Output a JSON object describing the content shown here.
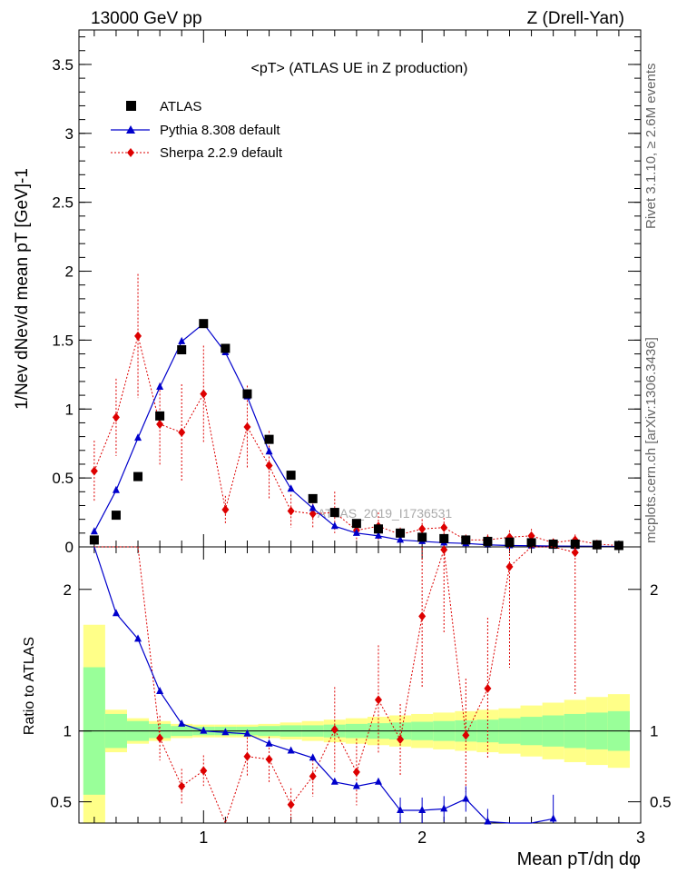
{
  "header": {
    "left": "13000 GeV pp",
    "right": "Z (Drell-Yan)"
  },
  "side_labels": {
    "rivet": "Rivet 3.1.10, ≥ 2.6M events",
    "mcplots": "mcplots.cern.ch [arXiv:1306.3436]"
  },
  "watermark": "ATLAS_2019_I1736531",
  "colors": {
    "atlas": "#000000",
    "pythia": "#0000cc",
    "sherpa": "#dd0000",
    "band_inner": "#99ff99",
    "band_outer": "#ffff88"
  },
  "chart_data": {
    "type": "scatter",
    "title": "<pT>  (ATLAS UE in Z production)",
    "xlabel": "Mean pT/dη dφ",
    "ylabel": "1/Nev dNev/d mean pT [GeV]-1",
    "ratio_ylabel": "Ratio to ATLAS",
    "xlim": [
      0.43,
      3.0
    ],
    "ylim": [
      0,
      3.75
    ],
    "ratio_ylim": [
      0.35,
      2.3
    ],
    "xticks": [
      1,
      2,
      3
    ],
    "yticks": [
      0,
      0.5,
      1,
      1.5,
      2,
      2.5,
      3,
      3.5
    ],
    "ratio_yticks": [
      0.5,
      1,
      2
    ],
    "legend": [
      "ATLAS",
      "Pythia 8.308 default",
      "Sherpa 2.2.9 default"
    ],
    "x": [
      0.5,
      0.6,
      0.7,
      0.8,
      0.9,
      1.0,
      1.1,
      1.2,
      1.3,
      1.4,
      1.5,
      1.6,
      1.7,
      1.8,
      1.9,
      2.0,
      2.1,
      2.2,
      2.3,
      2.4,
      2.5,
      2.6,
      2.7,
      2.8,
      2.9
    ],
    "series": [
      {
        "name": "ATLAS",
        "values": [
          0.05,
          0.23,
          0.51,
          0.95,
          1.43,
          1.62,
          1.44,
          1.11,
          0.78,
          0.52,
          0.35,
          0.25,
          0.17,
          0.13,
          0.1,
          0.07,
          0.06,
          0.05,
          0.04,
          0.035,
          0.03,
          0.02,
          0.02,
          0.015,
          0.01
        ]
      },
      {
        "name": "Pythia 8.308 default",
        "values": [
          0.11,
          0.41,
          0.79,
          1.16,
          1.49,
          1.62,
          1.41,
          1.09,
          0.69,
          0.42,
          0.28,
          0.15,
          0.1,
          0.08,
          0.05,
          0.04,
          0.03,
          0.025,
          0.015,
          0.01,
          0.008,
          0.006,
          0.005,
          0.004,
          0.003
        ],
        "errors": [
          0.005,
          0.01,
          0.01,
          0.01,
          0.02,
          0.02,
          0.02,
          0.02,
          0.01,
          0.01,
          0.01,
          0.01,
          0.01,
          0.01,
          0.01,
          0.005,
          0.005,
          0.005,
          0.005,
          0.005,
          0.005,
          0.005,
          0.005,
          0.005,
          0.005
        ]
      },
      {
        "name": "Sherpa 2.2.9 default",
        "values": [
          0.55,
          0.94,
          1.53,
          0.89,
          0.83,
          1.11,
          0.27,
          0.87,
          0.59,
          0.26,
          0.24,
          0.25,
          0.12,
          0.15,
          0.09,
          0.13,
          0.14,
          0.05,
          0.05,
          0.07,
          0.08,
          0.03,
          0.05,
          0.02,
          0.01
        ],
        "errors": [
          0.22,
          0.28,
          0.45,
          0.3,
          0.35,
          0.35,
          0.1,
          0.3,
          0.25,
          0.12,
          0.1,
          0.15,
          0.08,
          0.1,
          0.05,
          0.07,
          0.07,
          0.04,
          0.04,
          0.05,
          0.05,
          0.03,
          0.04,
          0.02,
          0.01
        ]
      }
    ],
    "ratio": {
      "pythia": [
        2.3,
        1.83,
        1.65,
        1.28,
        1.05,
        1.0,
        0.99,
        0.98,
        0.91,
        0.86,
        0.81,
        0.64,
        0.61,
        0.64,
        0.44,
        0.44,
        0.45,
        0.52,
        0.36,
        null,
        null,
        0.38,
        null,
        null,
        null
      ],
      "sherpa": [
        null,
        null,
        null,
        0.95,
        0.61,
        0.72,
        null,
        0.82,
        0.8,
        0.48,
        0.68,
        1.01,
        0.71,
        1.22,
        0.94,
        1.81,
        2.28,
        0.97,
        1.3,
        2.16,
        null,
        null,
        2.26,
        null,
        null
      ],
      "band_inner_half": [
        0.45,
        0.12,
        0.07,
        0.05,
        0.035,
        0.03,
        0.03,
        0.03,
        0.035,
        0.04,
        0.04,
        0.045,
        0.05,
        0.055,
        0.06,
        0.065,
        0.07,
        0.075,
        0.08,
        0.09,
        0.1,
        0.11,
        0.12,
        0.13,
        0.14
      ],
      "band_outer_half": [
        0.75,
        0.15,
        0.09,
        0.07,
        0.05,
        0.045,
        0.045,
        0.045,
        0.05,
        0.06,
        0.07,
        0.08,
        0.09,
        0.1,
        0.11,
        0.12,
        0.13,
        0.14,
        0.15,
        0.16,
        0.18,
        0.2,
        0.22,
        0.24,
        0.26
      ]
    }
  }
}
